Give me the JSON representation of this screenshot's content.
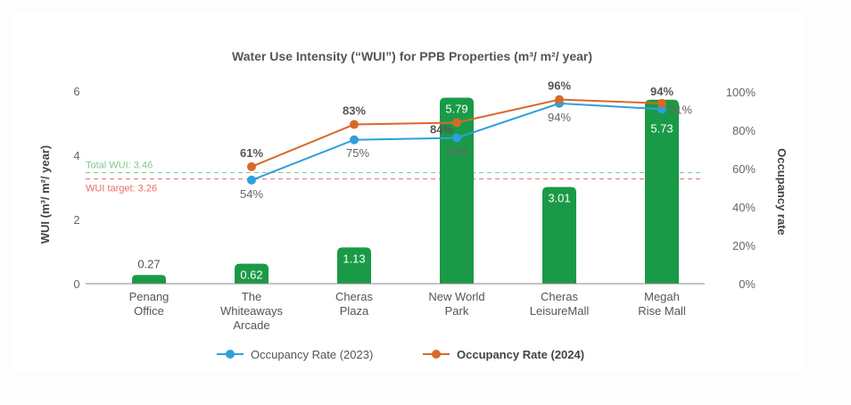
{
  "chart_data": {
    "type": "bar",
    "title": "Water Use Intensity (“WUI”) for PPB Properties (m³/ m²/ year)",
    "categories": [
      [
        "Penang",
        "Office"
      ],
      [
        "The",
        "Whiteaways",
        "Arcade"
      ],
      [
        "Cheras",
        "Plaza"
      ],
      [
        "New World",
        "Park"
      ],
      [
        "Cheras",
        "LeisureMall"
      ],
      [
        "Megah",
        "Rise Mall"
      ]
    ],
    "bars": {
      "name": "WUI",
      "values": [
        0.27,
        0.62,
        1.13,
        5.79,
        3.01,
        5.73
      ],
      "labels": [
        "0.27",
        "0.62",
        "1.13",
        "5.79",
        "3.01",
        "5.73"
      ],
      "color": "#1a9a47"
    },
    "series": [
      {
        "name": "Occupancy Rate (2023)",
        "axis": "right",
        "values": [
          null,
          54,
          75,
          76,
          94,
          91
        ],
        "labels": [
          null,
          "54%",
          "75%",
          "76%",
          "94%",
          "91%"
        ],
        "color": "#2f9fdc"
      },
      {
        "name": "Occupancy Rate (2024)",
        "axis": "right",
        "values": [
          null,
          61,
          83,
          84,
          96,
          94
        ],
        "labels": [
          null,
          "61%",
          "83%",
          "84%",
          "96%",
          "94%"
        ],
        "color": "#d8692a"
      }
    ],
    "reference_lines": [
      {
        "label": "Total WUI: 3.46",
        "value": 3.46,
        "color": "#7cc98c"
      },
      {
        "label": "WUI target: 3.26",
        "value": 3.26,
        "color": "#ec6b6b"
      }
    ],
    "ylabel": "WUI (m³/ m²/ year)",
    "ylim": [
      0,
      6
    ],
    "yticks": [
      "0",
      "2",
      "4",
      "6"
    ],
    "y2label": "Occupancy rate",
    "y2lim": [
      0,
      100
    ],
    "y2ticks": [
      "0%",
      "20%",
      "40%",
      "60%",
      "80%",
      "100%"
    ],
    "grid": false,
    "legend_position": "bottom-center"
  }
}
